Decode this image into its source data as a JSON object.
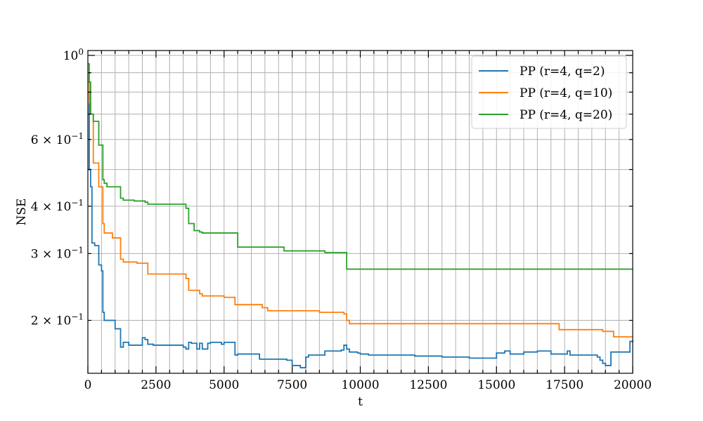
{
  "chart_data": {
    "type": "line",
    "xlabel": "t",
    "ylabel": "NSE",
    "xlim": [
      0,
      20000
    ],
    "ylim": [
      0.145,
      1.03
    ],
    "yscale": "log",
    "grid": true,
    "legend_position": "upper-right",
    "x_ticks": [
      0,
      2500,
      5000,
      7500,
      10000,
      12500,
      15000,
      17500,
      20000
    ],
    "x_tick_labels": [
      "0",
      "2500",
      "5000",
      "7500",
      "10000",
      "12500",
      "15000",
      "17500",
      "20000"
    ],
    "y_ticks": [
      {
        "value": 1.0,
        "mant": "10",
        "exp": "0"
      },
      {
        "value": 0.6,
        "mant": "6 × 10",
        "exp": "−1"
      },
      {
        "value": 0.4,
        "mant": "4 × 10",
        "exp": "−1"
      },
      {
        "value": 0.3,
        "mant": "3 × 10",
        "exp": "−1"
      },
      {
        "value": 0.2,
        "mant": "2 × 10",
        "exp": "−1"
      }
    ],
    "series": [
      {
        "name": "PP (r=4, q=2)",
        "color": "#1f77b4",
        "x": [
          0,
          50,
          100,
          150,
          200,
          250,
          400,
          500,
          550,
          600,
          650,
          1000,
          1200,
          1300,
          1500,
          2000,
          2100,
          2200,
          2400,
          3500,
          3600,
          3700,
          3800,
          4000,
          4100,
          4200,
          4400,
          4500,
          4900,
          5000,
          5400,
          5500,
          6300,
          6400,
          7300,
          7500,
          7800,
          8000,
          8100,
          8700,
          9300,
          9400,
          9500,
          9600,
          9900,
          10000,
          10300,
          11500,
          12000,
          13000,
          14000,
          15000,
          15300,
          15500,
          16000,
          16500,
          17000,
          17400,
          17600,
          17700,
          18700,
          18800,
          18900,
          19000,
          19200,
          19800,
          19900,
          20000
        ],
        "y": [
          0.8,
          0.5,
          0.45,
          0.32,
          0.32,
          0.315,
          0.28,
          0.27,
          0.21,
          0.2,
          0.2,
          0.19,
          0.17,
          0.175,
          0.172,
          0.18,
          0.178,
          0.173,
          0.172,
          0.17,
          0.168,
          0.175,
          0.174,
          0.168,
          0.174,
          0.168,
          0.174,
          0.175,
          0.173,
          0.175,
          0.162,
          0.163,
          0.158,
          0.158,
          0.157,
          0.152,
          0.15,
          0.16,
          0.162,
          0.166,
          0.167,
          0.172,
          0.168,
          0.165,
          0.164,
          0.163,
          0.162,
          0.162,
          0.161,
          0.16,
          0.159,
          0.164,
          0.166,
          0.163,
          0.165,
          0.166,
          0.163,
          0.163,
          0.166,
          0.162,
          0.16,
          0.157,
          0.154,
          0.152,
          0.165,
          0.165,
          0.176,
          0.177
        ]
      },
      {
        "name": "PP (r=4, q=10)",
        "color": "#ff7f0e",
        "x": [
          0,
          50,
          100,
          200,
          300,
          400,
          550,
          600,
          700,
          900,
          1200,
          1300,
          1500,
          1800,
          2200,
          2300,
          3500,
          3600,
          3700,
          3900,
          4100,
          4200,
          4500,
          5000,
          5400,
          5500,
          6300,
          6400,
          6600,
          8000,
          8500,
          8600,
          9400,
          9500,
          9600,
          12000,
          15000,
          16000,
          17200,
          17300,
          18800,
          18900,
          19300,
          19900,
          20000
        ],
        "y": [
          0.85,
          0.75,
          0.7,
          0.52,
          0.52,
          0.45,
          0.36,
          0.34,
          0.34,
          0.33,
          0.29,
          0.285,
          0.285,
          0.283,
          0.265,
          0.265,
          0.265,
          0.258,
          0.24,
          0.24,
          0.235,
          0.232,
          0.232,
          0.23,
          0.22,
          0.22,
          0.22,
          0.216,
          0.212,
          0.212,
          0.21,
          0.21,
          0.208,
          0.2,
          0.196,
          0.196,
          0.196,
          0.196,
          0.196,
          0.189,
          0.189,
          0.187,
          0.181,
          0.181,
          0.181
        ]
      },
      {
        "name": "PP (r=4, q=20)",
        "color": "#2ca02c",
        "x": [
          0,
          50,
          100,
          200,
          400,
          550,
          600,
          700,
          1200,
          1300,
          1700,
          2100,
          2200,
          3500,
          3600,
          3700,
          3900,
          4100,
          4200,
          5400,
          5500,
          7100,
          7200,
          8600,
          8700,
          9400,
          9500,
          12000,
          15000,
          18000,
          20000
        ],
        "y": [
          0.95,
          0.85,
          0.7,
          0.67,
          0.58,
          0.47,
          0.46,
          0.45,
          0.42,
          0.415,
          0.413,
          0.41,
          0.405,
          0.405,
          0.395,
          0.36,
          0.345,
          0.342,
          0.34,
          0.34,
          0.312,
          0.312,
          0.305,
          0.305,
          0.302,
          0.302,
          0.273,
          0.273,
          0.273,
          0.273,
          0.273
        ]
      }
    ]
  }
}
